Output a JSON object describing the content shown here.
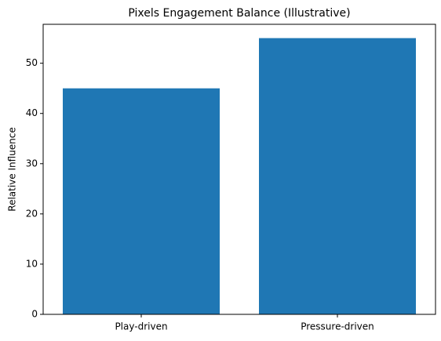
{
  "chart_data": {
    "type": "bar",
    "title": "Pixels Engagement Balance (Illustrative)",
    "y_label": "Relative Influence",
    "categories": [
      "Play-driven",
      "Pressure-driven"
    ],
    "values": [
      45,
      55
    ],
    "color": "#1f77b4",
    "ylim": [
      0,
      57.75
    ],
    "yticks": [
      0,
      10,
      20,
      30,
      40,
      50
    ]
  }
}
